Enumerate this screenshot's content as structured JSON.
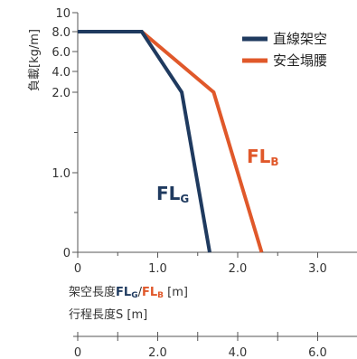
{
  "chart_data": {
    "type": "line",
    "ylabel": "負載[kg/m]",
    "xlabel_prefix": "架空長度",
    "xlabel_slash": "/",
    "xlabel_unit": " [m]",
    "xlabel2": "行程長度S [m]",
    "y_ticks": [
      {
        "value": 0,
        "label": "0"
      },
      {
        "value": 1.0,
        "label": "1.0"
      },
      {
        "value": 2.0,
        "label": "2.0"
      },
      {
        "value": 4.0,
        "label": "4.0"
      },
      {
        "value": 6.0,
        "label": "6.0"
      },
      {
        "value": 8.0,
        "label": "8.0"
      },
      {
        "value": 10,
        "label": "10"
      }
    ],
    "y_minor_ticks": [
      0.5,
      1.5
    ],
    "x_ticks": [
      {
        "value": 0,
        "label": "0"
      },
      {
        "value": 1.0,
        "label": "1.0"
      },
      {
        "value": 2.0,
        "label": "2.0"
      },
      {
        "value": 3.0,
        "label": "3.0"
      }
    ],
    "x_minor_ticks": [
      0.5,
      1.5,
      2.5
    ],
    "xlim": [
      0,
      3.5
    ],
    "x2_ticks": [
      {
        "value": 0,
        "label": "0"
      },
      {
        "value": 2.0,
        "label": "2.0"
      },
      {
        "value": 4.0,
        "label": "4.0"
      },
      {
        "value": 6.0,
        "label": "6.0"
      }
    ],
    "x2_minor_ticks": [
      1.0,
      3.0,
      5.0
    ],
    "x2lim": [
      0,
      7.0
    ],
    "series": [
      {
        "name": "直線架空",
        "label_main": "FL",
        "label_sub": "G",
        "color": "#1f3a5f",
        "points": [
          [
            0,
            8.0
          ],
          [
            0.8,
            8.0
          ],
          [
            1.3,
            2.0
          ],
          [
            1.65,
            0
          ]
        ]
      },
      {
        "name": "安全塌腰",
        "label_main": "FL",
        "label_sub": "B",
        "color": "#e0582a",
        "points": [
          [
            0,
            8.0
          ],
          [
            0.8,
            8.0
          ],
          [
            1.7,
            2.0
          ],
          [
            2.3,
            0
          ]
        ]
      }
    ],
    "grid": false,
    "legend": "top-right"
  }
}
